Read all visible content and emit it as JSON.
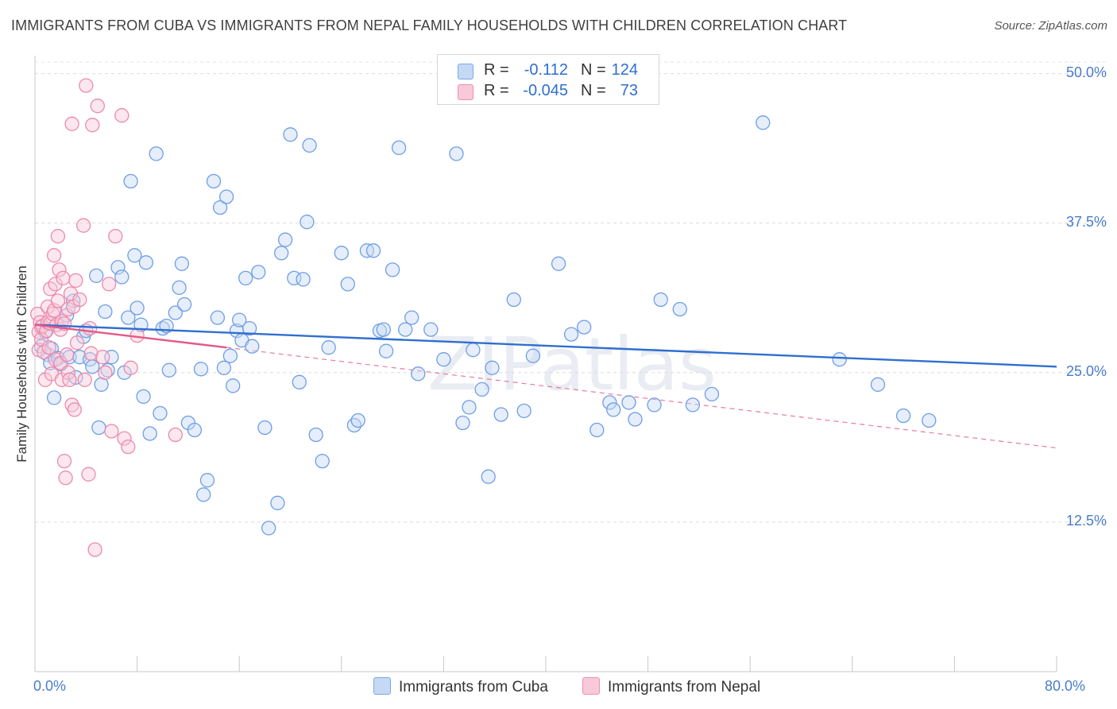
{
  "title": "IMMIGRANTS FROM CUBA VS IMMIGRANTS FROM NEPAL FAMILY HOUSEHOLDS WITH CHILDREN CORRELATION CHART",
  "source": "Source: ZipAtlas.com",
  "watermark": "ZIPatlas",
  "legend": {
    "rows": [
      {
        "r_label": "R =",
        "r_value": "-0.112",
        "n_label": "N =",
        "n_value": "124",
        "color": "#7aa7e8",
        "fill": "#c5d9f5"
      },
      {
        "r_label": "R =",
        "r_value": "-0.045",
        "n_label": "N =",
        "n_value": "73",
        "color": "#ef8fb1",
        "fill": "#f8c9d9"
      }
    ]
  },
  "bottom_legend": [
    {
      "label": "Immigrants from Cuba",
      "color": "#7aa7e8",
      "fill": "#c5d9f5"
    },
    {
      "label": "Immigrants from Nepal",
      "color": "#ef8fb1",
      "fill": "#f8c9d9"
    }
  ],
  "chart_data": {
    "type": "scatter",
    "title": "IMMIGRANTS FROM CUBA VS IMMIGRANTS FROM NEPAL FAMILY HOUSEHOLDS WITH CHILDREN CORRELATION CHART",
    "xlabel": "",
    "ylabel": "Family Households with Children",
    "xlim": [
      0,
      80
    ],
    "ylim": [
      0,
      51.5
    ],
    "x_tick_labels": [
      {
        "value": 0,
        "label": "0.0%"
      },
      {
        "value": 80,
        "label": "80.0%"
      }
    ],
    "y_tick_labels": [
      {
        "value": 12.5,
        "label": "12.5%"
      },
      {
        "value": 25.0,
        "label": "25.0%"
      },
      {
        "value": 37.5,
        "label": "37.5%"
      },
      {
        "value": 50.0,
        "label": "50.0%"
      }
    ],
    "x_minor_ticks": [
      0,
      8,
      16,
      24,
      32,
      40,
      48,
      56,
      64,
      72,
      80
    ],
    "grid": true,
    "series": [
      {
        "name": "Immigrants from Cuba",
        "color": "#6f9ee6",
        "fill": "#c5d9f5",
        "trend": {
          "x": [
            0,
            80
          ],
          "y": [
            29.0,
            25.5
          ],
          "style": "solid",
          "color": "#2f6fcf"
        },
        "points": [
          [
            0.5,
            27.2
          ],
          [
            0.8,
            28.4
          ],
          [
            1.0,
            26.5
          ],
          [
            1.2,
            25.8
          ],
          [
            1.3,
            27.0
          ],
          [
            1.5,
            22.9
          ],
          [
            1.8,
            26.2
          ],
          [
            2.0,
            25.7
          ],
          [
            2.5,
            29.8
          ],
          [
            2.7,
            26.3
          ],
          [
            3.0,
            31.0
          ],
          [
            3.2,
            24.6
          ],
          [
            3.5,
            26.3
          ],
          [
            3.8,
            28.0
          ],
          [
            4.0,
            28.5
          ],
          [
            4.3,
            26.1
          ],
          [
            4.5,
            25.5
          ],
          [
            4.8,
            33.1
          ],
          [
            5.0,
            20.4
          ],
          [
            5.2,
            24.0
          ],
          [
            5.5,
            30.1
          ],
          [
            5.7,
            25.2
          ],
          [
            6.0,
            26.3
          ],
          [
            6.5,
            33.8
          ],
          [
            6.8,
            33.0
          ],
          [
            7.0,
            25.0
          ],
          [
            7.3,
            29.6
          ],
          [
            7.5,
            41.0
          ],
          [
            7.8,
            34.8
          ],
          [
            8.0,
            30.4
          ],
          [
            8.3,
            29.0
          ],
          [
            8.5,
            23.0
          ],
          [
            8.7,
            34.2
          ],
          [
            9.0,
            19.9
          ],
          [
            9.5,
            43.3
          ],
          [
            9.8,
            21.6
          ],
          [
            10.0,
            28.7
          ],
          [
            10.3,
            28.9
          ],
          [
            10.5,
            25.2
          ],
          [
            11.0,
            30.0
          ],
          [
            11.3,
            32.1
          ],
          [
            11.5,
            34.1
          ],
          [
            11.7,
            30.7
          ],
          [
            12.0,
            20.8
          ],
          [
            12.5,
            20.2
          ],
          [
            13.0,
            25.3
          ],
          [
            13.2,
            14.8
          ],
          [
            13.5,
            16.0
          ],
          [
            14.0,
            41.0
          ],
          [
            14.3,
            29.6
          ],
          [
            14.5,
            38.8
          ],
          [
            14.8,
            25.4
          ],
          [
            15.0,
            39.7
          ],
          [
            15.3,
            26.4
          ],
          [
            15.5,
            23.9
          ],
          [
            15.8,
            28.5
          ],
          [
            16.0,
            29.4
          ],
          [
            16.2,
            27.7
          ],
          [
            16.5,
            32.9
          ],
          [
            16.8,
            28.7
          ],
          [
            17.0,
            27.2
          ],
          [
            17.5,
            33.4
          ],
          [
            18.0,
            20.4
          ],
          [
            18.3,
            12.0
          ],
          [
            19.0,
            14.1
          ],
          [
            19.3,
            35.0
          ],
          [
            19.6,
            36.1
          ],
          [
            20.0,
            44.9
          ],
          [
            20.3,
            32.9
          ],
          [
            20.7,
            24.2
          ],
          [
            21.0,
            32.8
          ],
          [
            21.3,
            37.6
          ],
          [
            21.5,
            44.0
          ],
          [
            22.0,
            19.8
          ],
          [
            22.5,
            17.6
          ],
          [
            23.0,
            27.1
          ],
          [
            24.0,
            35.0
          ],
          [
            24.5,
            32.4
          ],
          [
            25.0,
            20.6
          ],
          [
            25.3,
            21.0
          ],
          [
            26.0,
            35.2
          ],
          [
            26.5,
            35.2
          ],
          [
            27.0,
            28.5
          ],
          [
            27.3,
            28.6
          ],
          [
            27.5,
            26.8
          ],
          [
            28.0,
            33.6
          ],
          [
            28.5,
            43.8
          ],
          [
            29.0,
            28.6
          ],
          [
            29.5,
            29.6
          ],
          [
            30.0,
            24.9
          ],
          [
            31.0,
            28.6
          ],
          [
            32.0,
            26.1
          ],
          [
            33.0,
            43.3
          ],
          [
            33.5,
            20.8
          ],
          [
            34.0,
            22.1
          ],
          [
            34.3,
            26.9
          ],
          [
            35.0,
            23.6
          ],
          [
            35.5,
            16.3
          ],
          [
            35.8,
            25.4
          ],
          [
            36.5,
            21.5
          ],
          [
            37.5,
            31.1
          ],
          [
            38.3,
            21.8
          ],
          [
            39.0,
            26.4
          ],
          [
            41.0,
            34.1
          ],
          [
            42.0,
            28.2
          ],
          [
            43.0,
            28.8
          ],
          [
            44.0,
            20.2
          ],
          [
            45.0,
            22.5
          ],
          [
            45.3,
            21.9
          ],
          [
            46.5,
            22.5
          ],
          [
            47.0,
            21.1
          ],
          [
            48.5,
            22.3
          ],
          [
            49.0,
            31.1
          ],
          [
            50.5,
            30.3
          ],
          [
            51.5,
            22.3
          ],
          [
            53.0,
            23.2
          ],
          [
            57.0,
            45.9
          ],
          [
            63.0,
            26.1
          ],
          [
            66.0,
            24.0
          ],
          [
            68.0,
            21.4
          ],
          [
            70.0,
            21.0
          ]
        ]
      },
      {
        "name": "Immigrants from Nepal",
        "color": "#ec8aac",
        "fill": "#f8c9d9",
        "trend": {
          "x": [
            0,
            15
          ],
          "y": [
            29.0,
            27.1
          ],
          "style": "solid",
          "color": "#e3598a",
          "extended": {
            "x": [
              15,
              80
            ],
            "y": [
              27.1,
              18.7
            ],
            "style": "dashed"
          }
        },
        "points": [
          [
            0.2,
            29.9
          ],
          [
            0.3,
            28.4
          ],
          [
            0.3,
            26.9
          ],
          [
            0.4,
            29.2
          ],
          [
            0.5,
            27.8
          ],
          [
            0.5,
            28.8
          ],
          [
            0.6,
            28.9
          ],
          [
            0.7,
            26.7
          ],
          [
            0.8,
            24.4
          ],
          [
            0.9,
            28.5
          ],
          [
            1.0,
            29.2
          ],
          [
            1.0,
            30.5
          ],
          [
            1.1,
            27.1
          ],
          [
            1.2,
            29.1
          ],
          [
            1.2,
            32.0
          ],
          [
            1.3,
            24.9
          ],
          [
            1.4,
            29.9
          ],
          [
            1.5,
            30.2
          ],
          [
            1.5,
            34.8
          ],
          [
            1.6,
            32.4
          ],
          [
            1.6,
            26.1
          ],
          [
            1.7,
            29.0
          ],
          [
            1.8,
            36.4
          ],
          [
            1.8,
            31.0
          ],
          [
            1.9,
            33.6
          ],
          [
            2.0,
            25.8
          ],
          [
            2.0,
            28.6
          ],
          [
            2.1,
            29.3
          ],
          [
            2.1,
            24.4
          ],
          [
            2.2,
            32.9
          ],
          [
            2.3,
            17.6
          ],
          [
            2.3,
            29.1
          ],
          [
            2.4,
            16.2
          ],
          [
            2.5,
            26.5
          ],
          [
            2.6,
            30.3
          ],
          [
            2.6,
            25.0
          ],
          [
            2.7,
            24.4
          ],
          [
            2.8,
            31.6
          ],
          [
            2.9,
            45.8
          ],
          [
            2.9,
            22.3
          ],
          [
            3.0,
            30.5
          ],
          [
            3.1,
            21.9
          ],
          [
            3.2,
            32.7
          ],
          [
            3.3,
            27.5
          ],
          [
            3.5,
            31.1
          ],
          [
            3.8,
            37.3
          ],
          [
            3.9,
            24.4
          ],
          [
            4.0,
            49.0
          ],
          [
            4.2,
            16.5
          ],
          [
            4.3,
            28.7
          ],
          [
            4.4,
            26.6
          ],
          [
            4.5,
            45.7
          ],
          [
            4.7,
            10.2
          ],
          [
            4.9,
            47.3
          ],
          [
            5.3,
            26.3
          ],
          [
            5.5,
            25.0
          ],
          [
            5.8,
            32.4
          ],
          [
            6.0,
            20.1
          ],
          [
            6.3,
            36.4
          ],
          [
            6.8,
            46.5
          ],
          [
            7.0,
            19.5
          ],
          [
            7.3,
            18.8
          ],
          [
            7.5,
            25.4
          ],
          [
            8.0,
            28.1
          ],
          [
            11.0,
            19.8
          ]
        ]
      }
    ]
  }
}
